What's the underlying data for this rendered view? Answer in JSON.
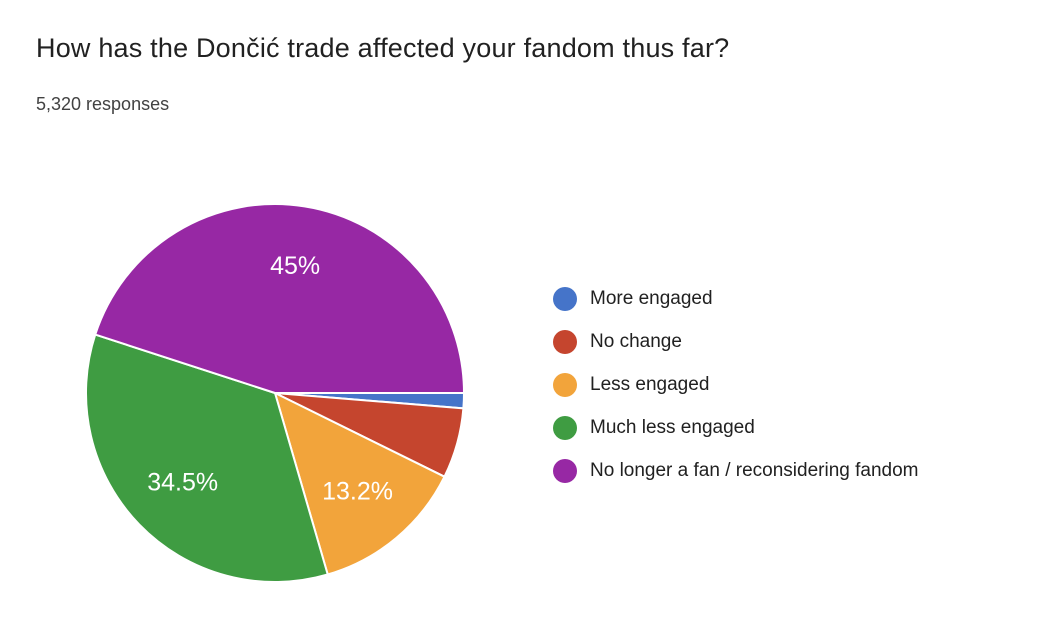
{
  "header": {
    "title": "How has the Dončić trade affected your fandom thus far?",
    "subtitle": "5,320 responses"
  },
  "chart_data": {
    "type": "pie",
    "title": "How has the Dončić trade affected your fandom thus far?",
    "subtitle": "5,320 responses",
    "categories": [
      "More engaged",
      "No change",
      "Less engaged",
      "Much less engaged",
      "No longer a fan / reconsidering fandom"
    ],
    "values": [
      1.3,
      6.0,
      13.2,
      34.5,
      45.0
    ],
    "slice_labels": [
      "",
      "",
      "13.2%",
      "34.5%",
      "45%"
    ],
    "colors": [
      "#4574C9",
      "#C5452E",
      "#F2A43B",
      "#3F9C42",
      "#9728A4"
    ],
    "start_angle_deg": 0,
    "direction": "clockwise",
    "legend_position": "right",
    "slice_border_color": "#ffffff",
    "slice_label_color": "#ffffff"
  },
  "legend": {
    "items": [
      {
        "label": "More engaged",
        "color": "#4574C9"
      },
      {
        "label": "No change",
        "color": "#C5452E"
      },
      {
        "label": "Less engaged",
        "color": "#F2A43B"
      },
      {
        "label": "Much less engaged",
        "color": "#3F9C42"
      },
      {
        "label": "No longer a fan / reconsidering fandom",
        "color": "#9728A4"
      }
    ]
  }
}
